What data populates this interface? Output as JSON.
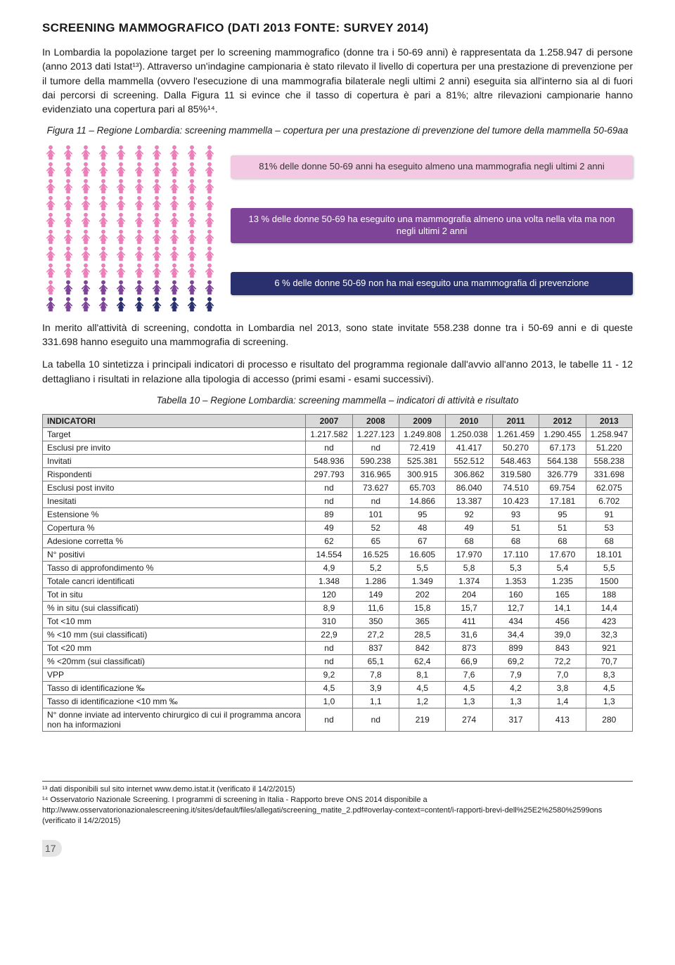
{
  "header": {
    "title": "SCREENING MAMMOGRAFICO (DATI 2013 FONTE: SURVEY 2014)"
  },
  "paragraphs": {
    "p1": "In Lombardia la popolazione target per lo screening mammografico (donne tra i 50-69 anni) è rappresentata da 1.258.947 di persone (anno 2013 dati Istat¹³). Attraverso un'indagine campionaria è stato rilevato il livello di copertura per una prestazione di prevenzione per il tumore della mammella (ovvero l'esecuzione di una mammografia bilaterale negli ultimi 2 anni) eseguita sia all'interno sia al di fuori dai percorsi di screening. Dalla Figura 11 si evince che il tasso di copertura è pari a 81%; altre rilevazioni campionarie hanno evidenziato una copertura pari al 85%¹⁴.",
    "p2": "In merito all'attività di screening, condotta in Lombardia nel 2013, sono state invitate 558.238 donne tra i 50-69 anni e di queste 331.698 hanno eseguito una mammografia di screening.",
    "p3": "La tabella 10 sintetizza i principali indicatori di processo e risultato del programma regionale dall'avvio all'anno 2013, le tabelle 11 - 12 dettagliano i risultati in relazione alla tipologia di accesso (primi esami - esami successivi)."
  },
  "figure": {
    "caption": "Figura 11 – Regione Lombardia: screening mammella – copertura per una prestazione di prevenzione del tumore della mammella 50-69aa",
    "groups": [
      {
        "color": "#ea7fb9",
        "count": 81
      },
      {
        "color": "#7d4497",
        "count": 13
      },
      {
        "color": "#2a2f6e",
        "count": 6
      }
    ],
    "bars": {
      "bar1": "81% delle donne 50-69 anni ha eseguito almeno una mammografia negli ultimi 2 anni",
      "bar2": "13 % delle donne 50-69 ha eseguito una mammografia almeno una volta nella vita ma non negli ultimi 2 anni",
      "bar3": "6 % delle donne 50-69 non ha mai eseguito una mammografia di prevenzione"
    }
  },
  "table": {
    "caption": "Tabella 10 – Regione Lombardia: screening mammella – indicatori di attività e risultato",
    "header_label": "INDICATORI",
    "years": [
      "2007",
      "2008",
      "2009",
      "2010",
      "2011",
      "2012",
      "2013"
    ],
    "rows": [
      {
        "label": "Target",
        "v": [
          "1.217.582",
          "1.227.123",
          "1.249.808",
          "1.250.038",
          "1.261.459",
          "1.290.455",
          "1.258.947"
        ]
      },
      {
        "label": "Esclusi pre invito",
        "v": [
          "nd",
          "nd",
          "72.419",
          "41.417",
          "50.270",
          "67.173",
          "51.220"
        ]
      },
      {
        "label": "Invitati",
        "v": [
          "548.936",
          "590.238",
          "525.381",
          "552.512",
          "548.463",
          "564.138",
          "558.238"
        ]
      },
      {
        "label": "Rispondenti",
        "v": [
          "297.793",
          "316.965",
          "300.915",
          "306.862",
          "319.580",
          "326.779",
          "331.698"
        ]
      },
      {
        "label": "Esclusi post invito",
        "v": [
          "nd",
          "73.627",
          "65.703",
          "86.040",
          "74.510",
          "69.754",
          "62.075"
        ]
      },
      {
        "label": "Inesitati",
        "v": [
          "nd",
          "nd",
          "14.866",
          "13.387",
          "10.423",
          "17.181",
          "6.702"
        ]
      },
      {
        "label": "Estensione %",
        "v": [
          "89",
          "101",
          "95",
          "92",
          "93",
          "95",
          "91"
        ]
      },
      {
        "label": "Copertura %",
        "v": [
          "49",
          "52",
          "48",
          "49",
          "51",
          "51",
          "53"
        ]
      },
      {
        "label": "Adesione corretta %",
        "v": [
          "62",
          "65",
          "67",
          "68",
          "68",
          "68",
          "68"
        ]
      },
      {
        "label": "N° positivi",
        "v": [
          "14.554",
          "16.525",
          "16.605",
          "17.970",
          "17.110",
          "17.670",
          "18.101"
        ]
      },
      {
        "label": "Tasso di approfondimento %",
        "v": [
          "4,9",
          "5,2",
          "5,5",
          "5,8",
          "5,3",
          "5,4",
          "5,5"
        ]
      },
      {
        "label": "Totale cancri identificati",
        "v": [
          "1.348",
          "1.286",
          "1.349",
          "1.374",
          "1.353",
          "1.235",
          "1500"
        ]
      },
      {
        "label": "Tot in situ",
        "v": [
          "120",
          "149",
          "202",
          "204",
          "160",
          "165",
          "188"
        ]
      },
      {
        "label": "% in situ (sui classificati)",
        "v": [
          "8,9",
          "11,6",
          "15,8",
          "15,7",
          "12,7",
          "14,1",
          "14,4"
        ]
      },
      {
        "label": "Tot <10 mm",
        "v": [
          "310",
          "350",
          "365",
          "411",
          "434",
          "456",
          "423"
        ]
      },
      {
        "label": "% <10 mm (sui classificati)",
        "v": [
          "22,9",
          "27,2",
          "28,5",
          "31,6",
          "34,4",
          "39,0",
          "32,3"
        ]
      },
      {
        "label": "Tot <20 mm",
        "v": [
          "nd",
          "837",
          "842",
          "873",
          "899",
          "843",
          "921"
        ]
      },
      {
        "label": "% <20mm (sui classificati)",
        "v": [
          "nd",
          "65,1",
          "62,4",
          "66,9",
          "69,2",
          "72,2",
          "70,7"
        ]
      },
      {
        "label": "VPP",
        "v": [
          "9,2",
          "7,8",
          "8,1",
          "7,6",
          "7,9",
          "7,0",
          "8,3"
        ]
      },
      {
        "label": "Tasso di identificazione  ‰",
        "v": [
          "4,5",
          "3,9",
          "4,5",
          "4,5",
          "4,2",
          "3,8",
          "4,5"
        ]
      },
      {
        "label": "Tasso di identificazione  <10 mm ‰",
        "v": [
          "1,0",
          "1,1",
          "1,2",
          "1,3",
          "1,3",
          "1,4",
          "1,3"
        ]
      },
      {
        "label": "N° donne inviate ad intervento chirurgico di cui il programma ancora non ha informazioni",
        "v": [
          "nd",
          "nd",
          "219",
          "274",
          "317",
          "413",
          "280"
        ]
      }
    ]
  },
  "footnotes": {
    "f1": "¹³ dati disponibili sul sito internet  www.demo.istat.it (verificato il 14/2/2015)",
    "f2": "¹⁴ Osservatorio Nazionale Screening. I programmi di screening in Italia - Rapporto breve ONS 2014 disponibile a http://www.osservatorionazionalescreening.it/sites/default/files/allegati/screening_matite_2.pdf#overlay-context=content/i-rapporti-brevi-dell%25E2%2580%2599ons (verificato il 14/2/2015)"
  },
  "page_number": "17"
}
